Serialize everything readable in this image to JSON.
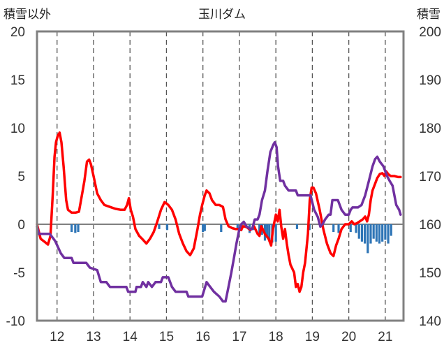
{
  "chart_data": {
    "type": "line",
    "title": "玉川ダム",
    "left_axis_label": "積雪以外",
    "right_axis_label": "積雪",
    "x_ticks": [
      "12",
      "13",
      "14",
      "15",
      "16",
      "17",
      "18",
      "19",
      "20",
      "21"
    ],
    "x_range": [
      11.45,
      21.5
    ],
    "left_ylim": [
      -10,
      20
    ],
    "left_ticks": [
      "-10",
      "-5",
      "0",
      "5",
      "10",
      "15",
      "20"
    ],
    "right_ylim": [
      140,
      200
    ],
    "right_ticks": [
      "140",
      "150",
      "160",
      "170",
      "180",
      "190",
      "200"
    ],
    "grid": "vertical dashed at each x tick",
    "series": [
      {
        "axis": "left",
        "color": "#ff0000",
        "points": [
          [
            11.45,
            0.0
          ],
          [
            11.55,
            -1.5
          ],
          [
            11.65,
            -1.8
          ],
          [
            11.75,
            -2.1
          ],
          [
            11.82,
            -1.2
          ],
          [
            11.88,
            3.0
          ],
          [
            11.93,
            7.0
          ],
          [
            11.97,
            8.5
          ],
          [
            12.02,
            9.2
          ],
          [
            12.07,
            9.5
          ],
          [
            12.12,
            8.5
          ],
          [
            12.18,
            6.0
          ],
          [
            12.25,
            2.5
          ],
          [
            12.3,
            1.5
          ],
          [
            12.4,
            1.2
          ],
          [
            12.5,
            1.2
          ],
          [
            12.6,
            1.3
          ],
          [
            12.68,
            3.0
          ],
          [
            12.75,
            4.5
          ],
          [
            12.82,
            6.5
          ],
          [
            12.88,
            6.7
          ],
          [
            12.93,
            6.2
          ],
          [
            13.0,
            5.0
          ],
          [
            13.1,
            3.2
          ],
          [
            13.2,
            2.5
          ],
          [
            13.3,
            2.0
          ],
          [
            13.45,
            1.8
          ],
          [
            13.6,
            1.6
          ],
          [
            13.75,
            1.5
          ],
          [
            13.85,
            1.5
          ],
          [
            13.92,
            2.0
          ],
          [
            13.97,
            2.7
          ],
          [
            14.02,
            1.5
          ],
          [
            14.08,
            0.8
          ],
          [
            14.15,
            -0.5
          ],
          [
            14.25,
            -1.2
          ],
          [
            14.33,
            -1.5
          ],
          [
            14.45,
            -2.0
          ],
          [
            14.55,
            -1.5
          ],
          [
            14.65,
            -0.8
          ],
          [
            14.75,
            0.3
          ],
          [
            14.85,
            1.5
          ],
          [
            14.95,
            2.3
          ],
          [
            15.05,
            2.0
          ],
          [
            15.15,
            1.5
          ],
          [
            15.25,
            0.5
          ],
          [
            15.35,
            -1.0
          ],
          [
            15.45,
            -2.0
          ],
          [
            15.55,
            -2.8
          ],
          [
            15.65,
            -3.2
          ],
          [
            15.75,
            -2.5
          ],
          [
            15.85,
            -0.5
          ],
          [
            15.92,
            1.0
          ],
          [
            15.98,
            2.0
          ],
          [
            16.05,
            3.0
          ],
          [
            16.1,
            3.5
          ],
          [
            16.18,
            3.2
          ],
          [
            16.25,
            2.5
          ],
          [
            16.35,
            2.0
          ],
          [
            16.45,
            2.0
          ],
          [
            16.55,
            1.8
          ],
          [
            16.62,
            0.5
          ],
          [
            16.7,
            -0.2
          ],
          [
            16.8,
            -0.4
          ],
          [
            16.9,
            -0.5
          ],
          [
            17.0,
            -0.5
          ],
          [
            17.05,
            -0.6
          ],
          [
            17.1,
            -0.2
          ],
          [
            17.2,
            -0.3
          ],
          [
            17.3,
            -0.6
          ],
          [
            17.4,
            -0.2
          ],
          [
            17.5,
            -1.0
          ],
          [
            17.55,
            -1.2
          ],
          [
            17.6,
            -0.2
          ],
          [
            17.7,
            -1.0
          ],
          [
            17.8,
            -1.5
          ],
          [
            17.87,
            -2.2
          ],
          [
            17.92,
            -0.5
          ],
          [
            18.0,
            1.0
          ],
          [
            18.05,
            0.3
          ],
          [
            18.1,
            1.5
          ],
          [
            18.15,
            -0.3
          ],
          [
            18.2,
            -1.5
          ],
          [
            18.25,
            -0.5
          ],
          [
            18.3,
            -2.0
          ],
          [
            18.35,
            -3.2
          ],
          [
            18.4,
            -4.2
          ],
          [
            18.5,
            -5.0
          ],
          [
            18.55,
            -6.5
          ],
          [
            18.6,
            -6.2
          ],
          [
            18.65,
            -7.0
          ],
          [
            18.7,
            -6.5
          ],
          [
            18.75,
            -5.0
          ],
          [
            18.8,
            -4.0
          ],
          [
            18.88,
            -1.0
          ],
          [
            18.93,
            2.5
          ],
          [
            18.98,
            3.8
          ],
          [
            19.03,
            3.8
          ],
          [
            19.1,
            3.2
          ],
          [
            19.2,
            1.5
          ],
          [
            19.3,
            -0.5
          ],
          [
            19.4,
            -2.0
          ],
          [
            19.5,
            -3.0
          ],
          [
            19.58,
            -3.3
          ],
          [
            19.65,
            -2.2
          ],
          [
            19.72,
            -1.5
          ],
          [
            19.8,
            -0.5
          ],
          [
            19.9,
            0.0
          ],
          [
            20.0,
            0.0
          ],
          [
            20.08,
            0.3
          ],
          [
            20.15,
            0.0
          ],
          [
            20.22,
            0.1
          ],
          [
            20.3,
            0.3
          ],
          [
            20.38,
            0.5
          ],
          [
            20.45,
            0.8
          ],
          [
            20.5,
            0.3
          ],
          [
            20.55,
            1.0
          ],
          [
            20.6,
            2.5
          ],
          [
            20.65,
            3.5
          ],
          [
            20.72,
            4.2
          ],
          [
            20.78,
            4.8
          ],
          [
            20.85,
            5.2
          ],
          [
            20.92,
            5.3
          ],
          [
            20.98,
            5.0
          ],
          [
            21.02,
            5.5
          ],
          [
            21.08,
            5.2
          ],
          [
            21.15,
            5.0
          ],
          [
            21.25,
            5.0
          ],
          [
            21.35,
            4.9
          ],
          [
            21.42,
            4.9
          ]
        ]
      },
      {
        "axis": "right",
        "color": "#7030a0",
        "points": [
          [
            11.45,
            159.5
          ],
          [
            11.5,
            158.0
          ],
          [
            11.8,
            158.0
          ],
          [
            11.95,
            156.5
          ],
          [
            12.1,
            154.0
          ],
          [
            12.2,
            153.0
          ],
          [
            12.4,
            153.0
          ],
          [
            12.45,
            152.0
          ],
          [
            12.8,
            152.0
          ],
          [
            12.9,
            151.0
          ],
          [
            13.1,
            150.5
          ],
          [
            13.2,
            148.0
          ],
          [
            13.35,
            148.0
          ],
          [
            13.45,
            147.0
          ],
          [
            13.9,
            147.0
          ],
          [
            13.95,
            146.0
          ],
          [
            14.15,
            146.0
          ],
          [
            14.18,
            147.0
          ],
          [
            14.3,
            147.0
          ],
          [
            14.35,
            148.0
          ],
          [
            14.45,
            147.0
          ],
          [
            14.5,
            148.0
          ],
          [
            14.6,
            147.0
          ],
          [
            14.7,
            148.0
          ],
          [
            14.85,
            148.0
          ],
          [
            14.9,
            149.0
          ],
          [
            15.05,
            149.0
          ],
          [
            15.15,
            147.0
          ],
          [
            15.25,
            146.0
          ],
          [
            15.55,
            146.0
          ],
          [
            15.6,
            145.0
          ],
          [
            15.98,
            145.0
          ],
          [
            16.02,
            146.0
          ],
          [
            16.1,
            148.0
          ],
          [
            16.2,
            147.0
          ],
          [
            16.3,
            146.0
          ],
          [
            16.45,
            145.0
          ],
          [
            16.55,
            144.0
          ],
          [
            16.62,
            144.0
          ],
          [
            16.7,
            147.0
          ],
          [
            16.78,
            150.0
          ],
          [
            16.85,
            153.0
          ],
          [
            16.92,
            156.0
          ],
          [
            17.0,
            159.0
          ],
          [
            17.05,
            160.0
          ],
          [
            17.12,
            160.5
          ],
          [
            17.2,
            159.5
          ],
          [
            17.3,
            159.0
          ],
          [
            17.35,
            159.0
          ],
          [
            17.42,
            161.0
          ],
          [
            17.5,
            161.0
          ],
          [
            17.55,
            162.0
          ],
          [
            17.62,
            165.0
          ],
          [
            17.7,
            167.0
          ],
          [
            17.77,
            171.0
          ],
          [
            17.85,
            175.0
          ],
          [
            17.93,
            176.5
          ],
          [
            17.97,
            177.0
          ],
          [
            18.02,
            176.0
          ],
          [
            18.06,
            172.0
          ],
          [
            18.12,
            169.0
          ],
          [
            18.2,
            169.0
          ],
          [
            18.25,
            168.0
          ],
          [
            18.35,
            167.0
          ],
          [
            18.55,
            167.0
          ],
          [
            18.6,
            166.0
          ],
          [
            18.95,
            166.0
          ],
          [
            19.05,
            163.0
          ],
          [
            19.15,
            161.5
          ],
          [
            19.22,
            159.5
          ],
          [
            19.28,
            160.0
          ],
          [
            19.35,
            161.0
          ],
          [
            19.45,
            162.0
          ],
          [
            19.5,
            162.0
          ],
          [
            19.55,
            165.0
          ],
          [
            19.7,
            165.0
          ],
          [
            19.8,
            163.0
          ],
          [
            19.9,
            162.0
          ],
          [
            20.0,
            162.0
          ],
          [
            20.05,
            163.0
          ],
          [
            20.1,
            163.5
          ],
          [
            20.25,
            163.5
          ],
          [
            20.35,
            164.0
          ],
          [
            20.45,
            166.0
          ],
          [
            20.55,
            169.0
          ],
          [
            20.65,
            172.0
          ],
          [
            20.72,
            173.5
          ],
          [
            20.78,
            174.0
          ],
          [
            20.85,
            173.0
          ],
          [
            20.95,
            172.0
          ],
          [
            21.05,
            170.0
          ],
          [
            21.12,
            169.0
          ],
          [
            21.2,
            168.0
          ],
          [
            21.3,
            164.0
          ],
          [
            21.38,
            163.0
          ],
          [
            21.42,
            162.0
          ]
        ]
      },
      {
        "axis": "left",
        "type": "bar",
        "color": "#2e75b6",
        "points": [
          [
            12.4,
            -0.8
          ],
          [
            12.5,
            -0.9
          ],
          [
            12.58,
            -0.8
          ],
          [
            14.8,
            -0.5
          ],
          [
            15.02,
            -0.6
          ],
          [
            16.0,
            -0.8
          ],
          [
            16.05,
            -0.7
          ],
          [
            16.5,
            -0.8
          ],
          [
            16.95,
            -0.6
          ],
          [
            17.05,
            -0.7
          ],
          [
            17.28,
            -0.9
          ],
          [
            17.38,
            -0.6
          ],
          [
            17.55,
            -1.2
          ],
          [
            17.62,
            -1.1
          ],
          [
            17.7,
            -1.7
          ],
          [
            17.76,
            -1.4
          ],
          [
            17.82,
            -1.6
          ],
          [
            17.9,
            -1.9
          ],
          [
            18.0,
            -1.8
          ],
          [
            18.58,
            -0.5
          ],
          [
            18.92,
            -0.6
          ],
          [
            19.58,
            -0.8
          ],
          [
            19.72,
            -0.9
          ],
          [
            20.05,
            -0.8
          ],
          [
            20.2,
            -0.9
          ],
          [
            20.28,
            -1.5
          ],
          [
            20.36,
            -1.8
          ],
          [
            20.44,
            -2.0
          ],
          [
            20.52,
            -3.0
          ],
          [
            20.6,
            -2.0
          ],
          [
            20.68,
            -1.5
          ],
          [
            20.76,
            -1.8
          ],
          [
            20.84,
            -2.0
          ],
          [
            20.92,
            -1.8
          ],
          [
            21.0,
            -1.6
          ],
          [
            21.08,
            -2.0
          ],
          [
            21.16,
            -1.2
          ]
        ]
      }
    ]
  }
}
